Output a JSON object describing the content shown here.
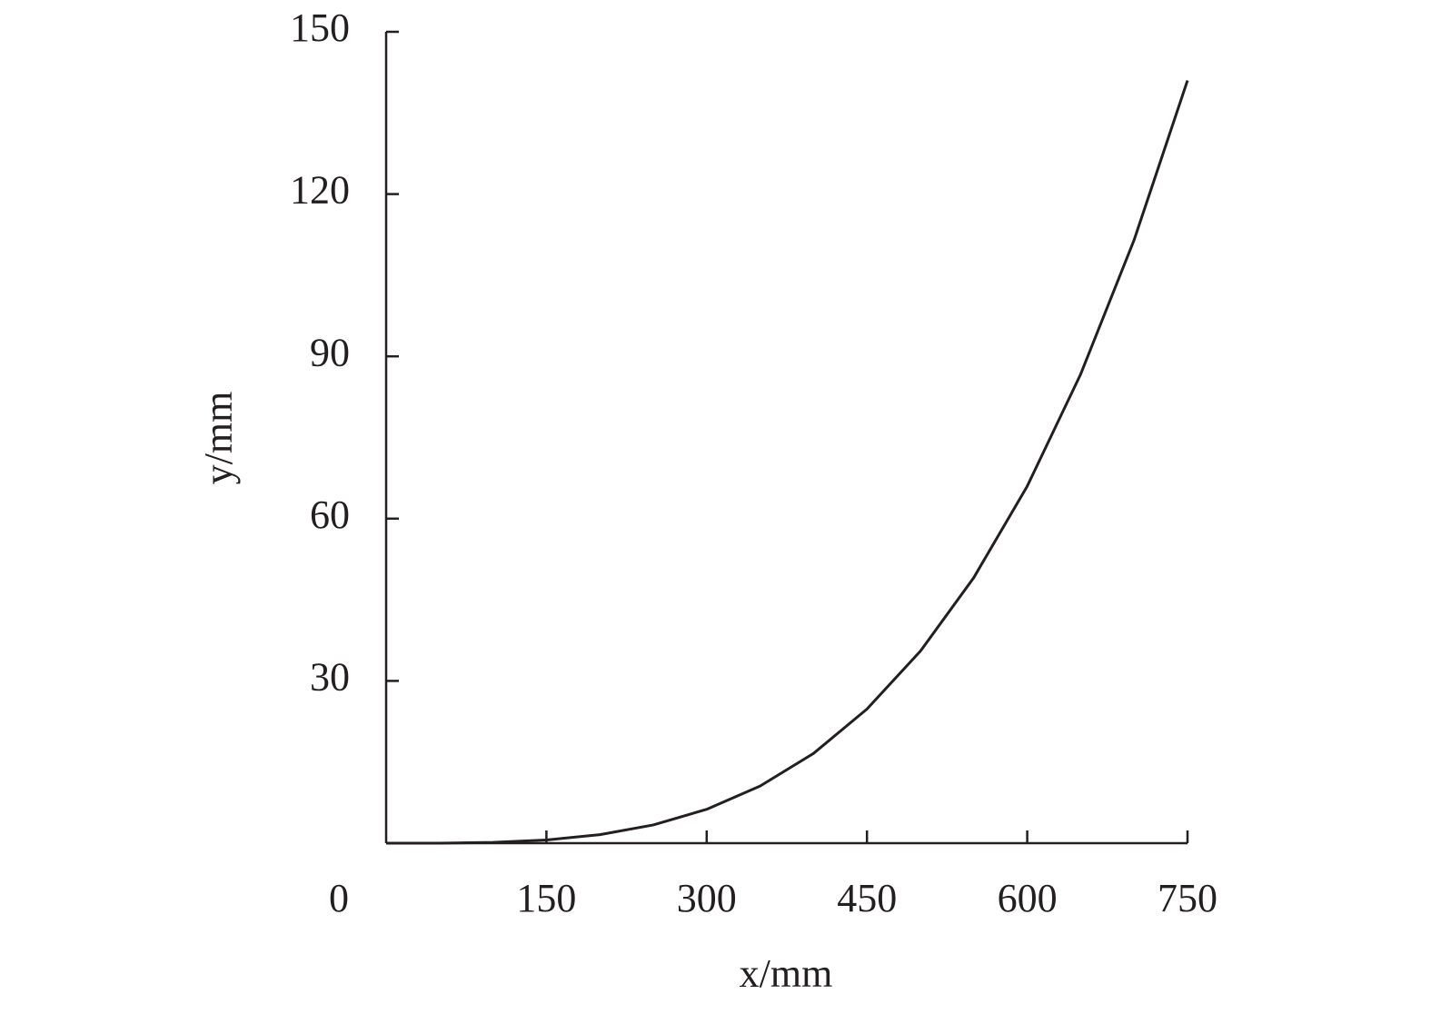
{
  "chart_data": {
    "type": "line",
    "x_label": "x/mm",
    "y_label": "y/mm",
    "x": [
      0,
      50,
      100,
      150,
      200,
      250,
      300,
      350,
      400,
      450,
      500,
      550,
      600,
      650,
      700,
      750
    ],
    "series": [
      {
        "color": "#231f20",
        "values": [
          0,
          0.01,
          0.15,
          0.59,
          1.57,
          3.37,
          6.26,
          10.56,
          16.6,
          24.8,
          35.5,
          49.1,
          66.0,
          86.7,
          111.5,
          141
        ]
      }
    ],
    "xlim": [
      0,
      750
    ],
    "ylim": [
      0,
      150
    ],
    "xticks": [
      0,
      150,
      300,
      450,
      600,
      750
    ],
    "yticks": [
      30,
      60,
      90,
      120,
      150
    ],
    "grid": false
  }
}
